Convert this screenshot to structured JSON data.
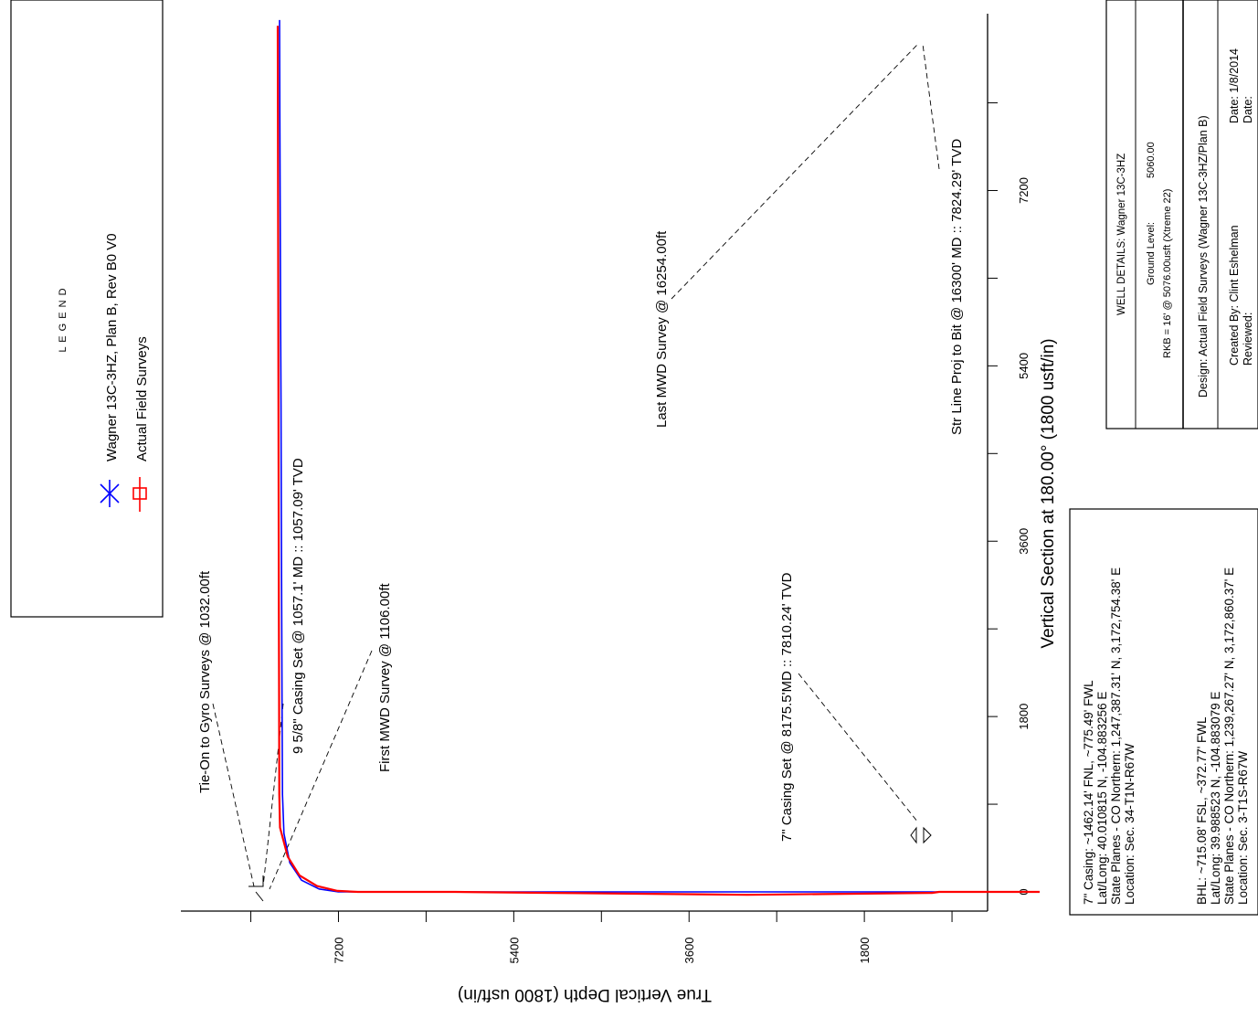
{
  "chart_data": {
    "type": "line",
    "title": "",
    "xlabel": "Vertical Section at 180.00° (1800 usft/in)",
    "ylabel": "True Vertical Depth (1800 usft/in)",
    "xlim": [
      -1050,
      7500
    ],
    "ylim": [
      0,
      8500
    ],
    "x_ticks": [
      0,
      1800,
      3600,
      5400,
      7200
    ],
    "y_ticks": [
      1800,
      3600,
      5400,
      7200
    ],
    "series": [
      {
        "name": "Wagner 13C-3HZ, Plan B, Rev B0 V0",
        "color": "#0000ff",
        "points": [
          [
            0,
            0
          ],
          [
            0,
            1000
          ],
          [
            0,
            2000
          ],
          [
            0,
            3000
          ],
          [
            0,
            4000
          ],
          [
            0,
            5000
          ],
          [
            0,
            6000
          ],
          [
            0,
            7000
          ],
          [
            0,
            7200
          ],
          [
            30,
            7400
          ],
          [
            120,
            7580
          ],
          [
            300,
            7700
          ],
          [
            600,
            7760
          ],
          [
            1000,
            7775
          ],
          [
            2000,
            7780
          ],
          [
            3000,
            7783
          ],
          [
            4000,
            7787
          ],
          [
            5000,
            7790
          ],
          [
            6000,
            7795
          ],
          [
            7000,
            7798
          ],
          [
            8000,
            7802
          ],
          [
            8950,
            7805
          ]
        ]
      },
      {
        "name": "Actual Field Surveys",
        "color": "#ff0000",
        "points": [
          [
            0,
            0
          ],
          [
            0,
            1032
          ],
          [
            -10,
            1106
          ],
          [
            -20,
            2000
          ],
          [
            -30,
            3000
          ],
          [
            -20,
            4000
          ],
          [
            -10,
            5000
          ],
          [
            0,
            6000
          ],
          [
            0,
            7000
          ],
          [
            10,
            7210
          ],
          [
            60,
            7420
          ],
          [
            170,
            7600
          ],
          [
            360,
            7720
          ],
          [
            660,
            7800
          ],
          [
            1000,
            7808
          ],
          [
            2000,
            7810
          ],
          [
            3000,
            7812
          ],
          [
            4000,
            7814
          ],
          [
            5000,
            7816
          ],
          [
            6000,
            7818
          ],
          [
            7000,
            7820
          ],
          [
            8000,
            7822
          ],
          [
            8890,
            7824
          ]
        ]
      }
    ],
    "annotations": [
      {
        "text": "Tie-On to Gyro Surveys @ 1032.00ft"
      },
      {
        "text": "9 5/8\" Casing Set @ 1057.1' MD :: 1057.09' TVD"
      },
      {
        "text": "First MWD Survey @ 1106.00ft"
      },
      {
        "text": "7\" Casing Set @ 8175.5'MD :: 7810.24' TVD"
      },
      {
        "text": "Last MWD Survey @ 16254.00ft"
      },
      {
        "text": "Str Line Proj to Bit @ 16300' MD :: 7824.29' TVD"
      }
    ]
  },
  "legend": {
    "heading": "L E G E N D",
    "items": [
      {
        "label": "Wagner 13C-3HZ, Plan B, Rev B0 V0",
        "color": "#0000ff"
      },
      {
        "label": "Actual Field Surveys",
        "color": "#ff0000"
      }
    ]
  },
  "casing_box": {
    "casing_lines": [
      "7\" Casing:  ~1462.14' FNL, ~775.49' FWL",
      "Lat/Long:  40.010815 N, -104.883256 E",
      "State Planes - CO Northern:  1,247,387.31' N, 3,172,754.38' E",
      "Location:  Sec. 34-T1N-R67W"
    ],
    "bhl_lines": [
      "BHL:  ~715.08' FSL, ~372.77' FWL",
      "Lat/Long:  39.988523 N, -104.883079 E",
      "State Planes - CO Northern:  1,239,267.27' N, 3,172,860.37' E",
      "Location:  Sec. 3-T1S-R67W"
    ]
  },
  "well_box": {
    "title": "WELL DETAILS: Wagner 13C-3HZ",
    "ground_level_label": "Ground Level:",
    "ground_level_value": "5060.00",
    "rkb": "RKB = 16' @ 5076.00usft (Xtreme 22)",
    "design": "Design: Actual Field Surveys (Wagner 13C-3HZ/Plan B)",
    "created_by": "Created By:  Clint Eshelman",
    "reviewed": "Reviewed:",
    "date1": "Date:  1/8/2014",
    "date2": "Date:"
  }
}
